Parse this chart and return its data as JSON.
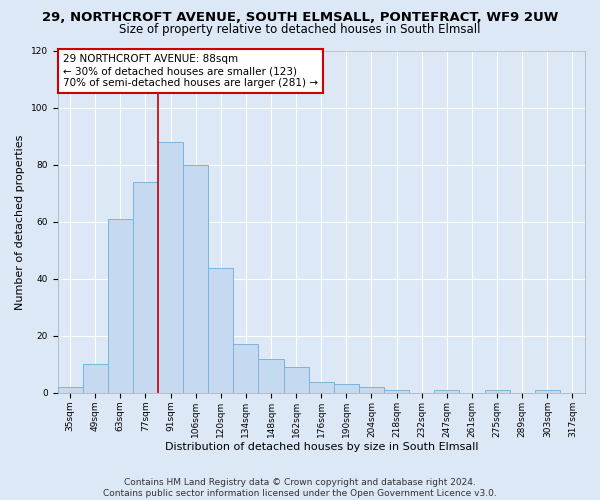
{
  "title": "29, NORTHCROFT AVENUE, SOUTH ELMSALL, PONTEFRACT, WF9 2UW",
  "subtitle": "Size of property relative to detached houses in South Elmsall",
  "xlabel": "Distribution of detached houses by size in South Elmsall",
  "ylabel": "Number of detached properties",
  "footer_line1": "Contains HM Land Registry data © Crown copyright and database right 2024.",
  "footer_line2": "Contains public sector information licensed under the Open Government Licence v3.0.",
  "bin_labels": [
    "35sqm",
    "49sqm",
    "63sqm",
    "77sqm",
    "91sqm",
    "106sqm",
    "120sqm",
    "134sqm",
    "148sqm",
    "162sqm",
    "176sqm",
    "190sqm",
    "204sqm",
    "218sqm",
    "232sqm",
    "247sqm",
    "261sqm",
    "275sqm",
    "289sqm",
    "303sqm",
    "317sqm"
  ],
  "bar_values": [
    2,
    10,
    61,
    74,
    88,
    80,
    44,
    17,
    12,
    9,
    4,
    3,
    2,
    1,
    0,
    1,
    0,
    1,
    0,
    1,
    0
  ],
  "bar_color": "#c5d9f1",
  "bar_edge_color": "#7ab4dc",
  "bar_edge_width": 0.7,
  "vline_color": "#cc0000",
  "vline_xindex": 3.5,
  "annotation_text_line1": "29 NORTHCROFT AVENUE: 88sqm",
  "annotation_text_line2": "← 30% of detached houses are smaller (123)",
  "annotation_text_line3": "70% of semi-detached houses are larger (281) →",
  "annotation_box_color": "#ffffff",
  "annotation_edge_color": "#cc0000",
  "ylim": [
    0,
    120
  ],
  "yticks": [
    0,
    20,
    40,
    60,
    80,
    100,
    120
  ],
  "bg_color": "#dce8f5",
  "plot_bg_color": "#dce8f5",
  "grid_color": "#ffffff",
  "title_fontsize": 9.5,
  "subtitle_fontsize": 8.5,
  "ylabel_fontsize": 8,
  "xlabel_fontsize": 8,
  "tick_fontsize": 6.5,
  "footer_fontsize": 6.5,
  "annotation_fontsize": 7.5
}
